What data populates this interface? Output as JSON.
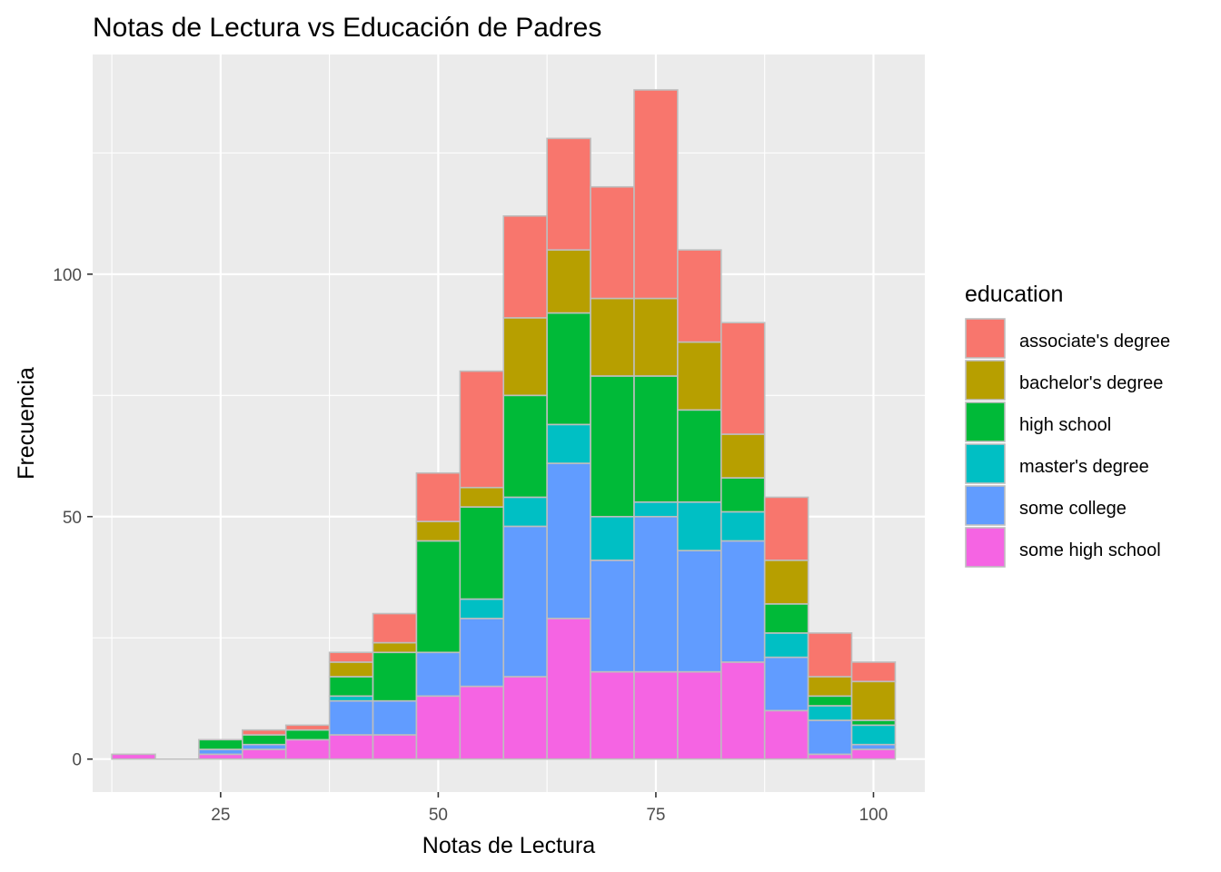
{
  "chart_data": {
    "type": "bar",
    "stacked": true,
    "title": "Notas de Lectura vs Educación de Padres",
    "xlabel": "Notas de Lectura",
    "ylabel": "Frecuencia",
    "xlim": [
      10.3,
      105.9
    ],
    "ylim": [
      -6.8,
      145.3
    ],
    "xticks": [
      25,
      50,
      75,
      100
    ],
    "yticks": [
      0,
      50,
      100
    ],
    "x_minor_gridlines": [
      12.5,
      37.5,
      62.5,
      87.5
    ],
    "y_minor_gridlines": [
      25,
      75,
      125
    ],
    "bin_width": 5,
    "bins": [
      15,
      20,
      25,
      30,
      35,
      40,
      45,
      50,
      55,
      60,
      65,
      70,
      75,
      80,
      85,
      90,
      95,
      100
    ],
    "bar_outline": "#bebebe",
    "panel_background": "#ebebeb",
    "grid_color": "#ffffff",
    "legend": {
      "title": "education",
      "position": "right"
    },
    "series": [
      {
        "name": "some high school",
        "color": "#f564e3",
        "values": [
          1,
          0,
          1,
          2,
          4,
          5,
          5,
          13,
          15,
          17,
          29,
          18,
          18,
          18,
          20,
          10,
          1,
          2
        ]
      },
      {
        "name": "some college",
        "color": "#619cff",
        "values": [
          0,
          0,
          1,
          1,
          0,
          7,
          7,
          9,
          14,
          31,
          32,
          23,
          32,
          25,
          25,
          11,
          7,
          1
        ]
      },
      {
        "name": "master's degree",
        "color": "#00bfc4",
        "values": [
          0,
          0,
          0,
          0,
          0,
          1,
          0,
          0,
          4,
          6,
          8,
          9,
          3,
          10,
          6,
          5,
          3,
          4
        ]
      },
      {
        "name": "high school",
        "color": "#00ba38",
        "values": [
          0,
          0,
          2,
          2,
          2,
          4,
          10,
          23,
          19,
          21,
          23,
          29,
          26,
          19,
          7,
          6,
          2,
          1
        ]
      },
      {
        "name": "bachelor's degree",
        "color": "#b79f00",
        "values": [
          0,
          0,
          0,
          0,
          0,
          3,
          2,
          4,
          4,
          16,
          13,
          16,
          16,
          14,
          9,
          9,
          4,
          8
        ]
      },
      {
        "name": "associate's degree",
        "color": "#f8766d",
        "values": [
          0,
          0,
          0,
          1,
          1,
          2,
          6,
          10,
          24,
          21,
          23,
          23,
          43,
          19,
          23,
          13,
          9,
          4
        ]
      }
    ],
    "legend_order": [
      "associate's degree",
      "bachelor's degree",
      "high school",
      "master's degree",
      "some college",
      "some high school"
    ]
  }
}
